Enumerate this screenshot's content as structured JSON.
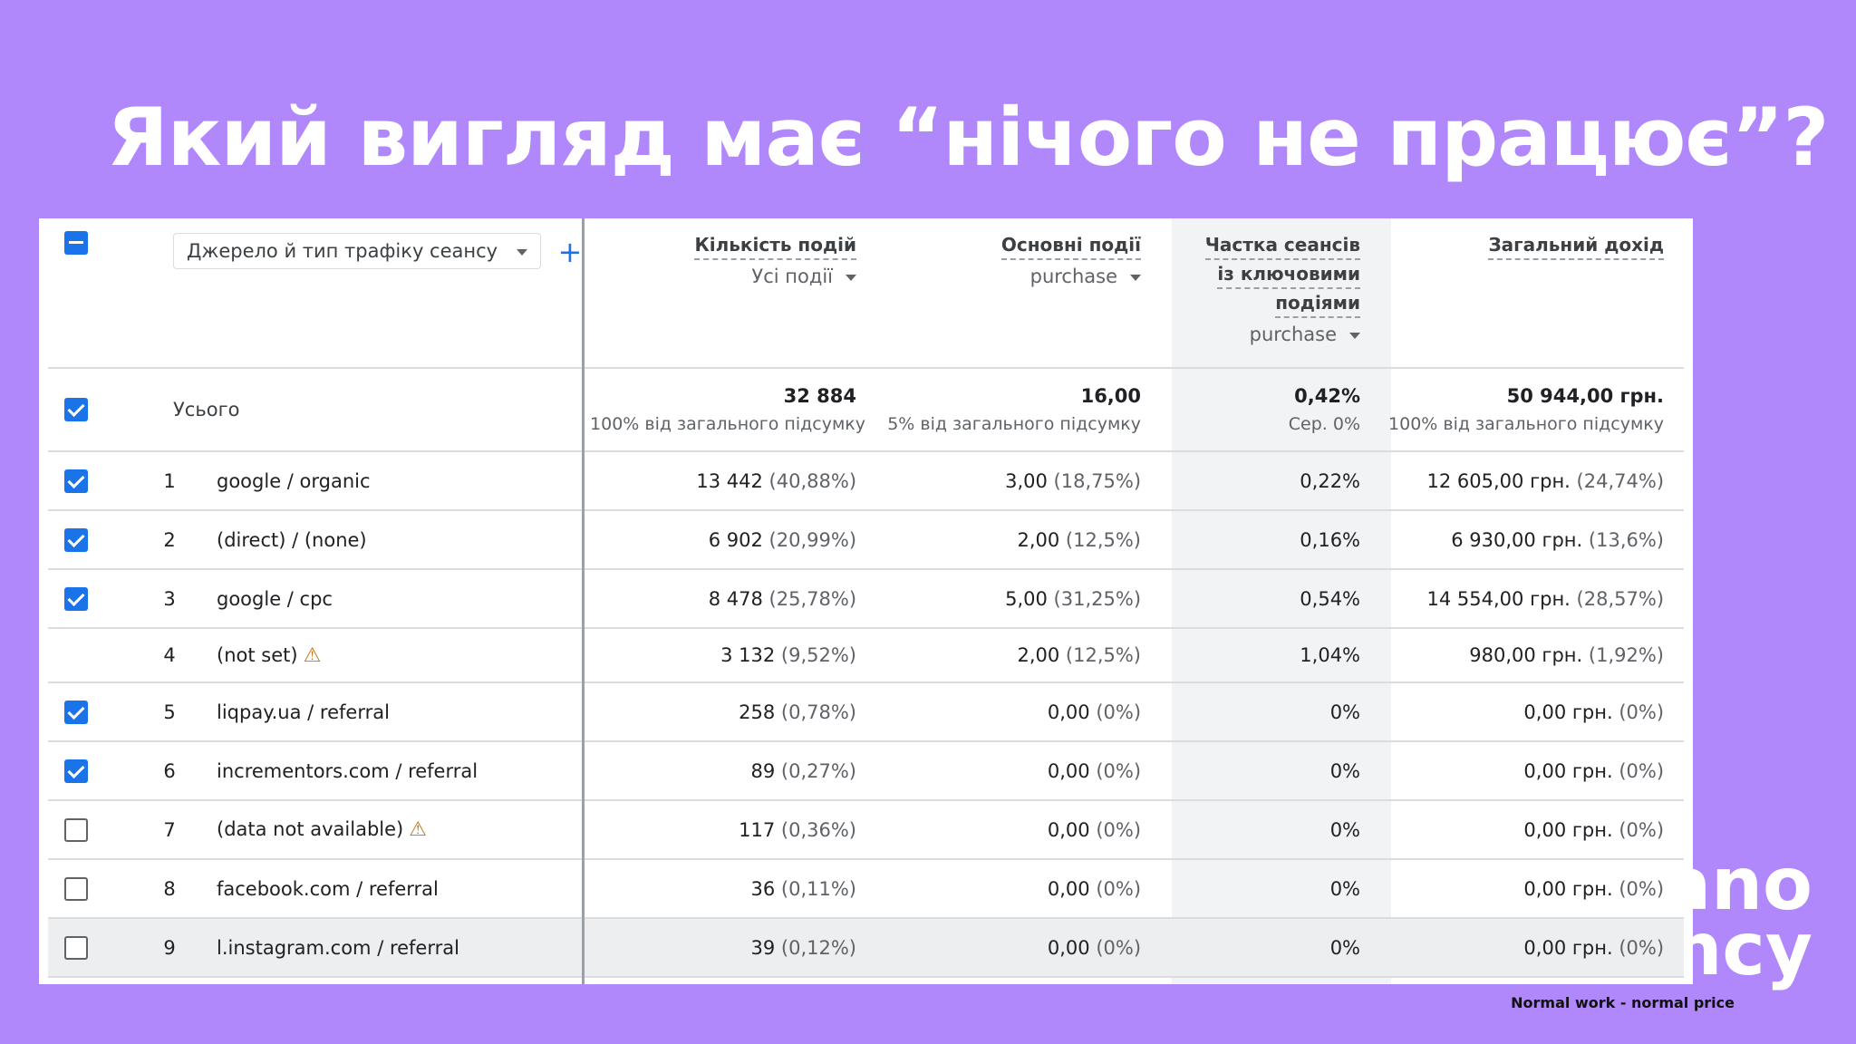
{
  "slide": {
    "title": "Який вигляд має “нічого не працює”?",
    "brand_line1": "аno",
    "brand_line2": "ency",
    "brand_tagline": "Normal work - normal price"
  },
  "report": {
    "dimension_selector": "Джерело й тип трафіку сеансу",
    "add_icon": "plus-icon",
    "columns": [
      {
        "title": "Кількість подій",
        "subtitle": "Усі події",
        "has_dropdown": true
      },
      {
        "title": "Основні події",
        "subtitle": "purchase",
        "has_dropdown": true
      },
      {
        "title_lines": [
          "Частка сеансів",
          "із ключовими",
          "подіями"
        ],
        "subtitle": "purchase",
        "has_dropdown": true
      },
      {
        "title": "Загальний дохід",
        "subtitle": "",
        "has_dropdown": false
      }
    ],
    "totals": {
      "label": "Усього",
      "checked": true,
      "values": [
        "32 884",
        "16,00",
        "0,42%",
        "50 944,00 грн."
      ],
      "subs": [
        "100% від загального підсумку",
        "5% від загального підсумку",
        "Сер. 0%",
        "100% від загального підсумку"
      ]
    },
    "rows": [
      {
        "n": "1",
        "name": "google / organic",
        "checked": true,
        "warn": false,
        "events": "13 442",
        "events_pct": "(40,88%)",
        "key": "3,00",
        "key_pct": "(18,75%)",
        "rate": "0,22%",
        "rev": "12 605,00 грн.",
        "rev_pct": "(24,74%)"
      },
      {
        "n": "2",
        "name": "(direct) / (none)",
        "checked": true,
        "warn": false,
        "events": "6 902",
        "events_pct": "(20,99%)",
        "key": "2,00",
        "key_pct": "(12,5%)",
        "rate": "0,16%",
        "rev": "6 930,00 грн.",
        "rev_pct": "(13,6%)"
      },
      {
        "n": "3",
        "name": "google / cpc",
        "checked": true,
        "warn": false,
        "events": "8 478",
        "events_pct": "(25,78%)",
        "key": "5,00",
        "key_pct": "(31,25%)",
        "rate": "0,54%",
        "rev": "14 554,00 грн.",
        "rev_pct": "(28,57%)"
      },
      {
        "n": "4",
        "name": "(not set)",
        "checked": null,
        "warn": true,
        "events": "3 132",
        "events_pct": "(9,52%)",
        "key": "2,00",
        "key_pct": "(12,5%)",
        "rate": "1,04%",
        "rev": "980,00 грн.",
        "rev_pct": "(1,92%)"
      },
      {
        "n": "5",
        "name": "liqpay.ua / referral",
        "checked": true,
        "warn": false,
        "events": "258",
        "events_pct": "(0,78%)",
        "key": "0,00",
        "key_pct": "(0%)",
        "rate": "0%",
        "rev": "0,00 грн.",
        "rev_pct": "(0%)"
      },
      {
        "n": "6",
        "name": "incrementors.com / referral",
        "checked": true,
        "warn": false,
        "events": "89",
        "events_pct": "(0,27%)",
        "key": "0,00",
        "key_pct": "(0%)",
        "rate": "0%",
        "rev": "0,00 грн.",
        "rev_pct": "(0%)"
      },
      {
        "n": "7",
        "name": "(data not available)",
        "checked": false,
        "warn": true,
        "events": "117",
        "events_pct": "(0,36%)",
        "key": "0,00",
        "key_pct": "(0%)",
        "rate": "0%",
        "rev": "0,00 грн.",
        "rev_pct": "(0%)"
      },
      {
        "n": "8",
        "name": "facebook.com / referral",
        "checked": false,
        "warn": false,
        "events": "36",
        "events_pct": "(0,11%)",
        "key": "0,00",
        "key_pct": "(0%)",
        "rate": "0%",
        "rev": "0,00 грн.",
        "rev_pct": "(0%)"
      },
      {
        "n": "9",
        "name": "l.instagram.com / referral",
        "checked": false,
        "warn": false,
        "events": "39",
        "events_pct": "(0,12%)",
        "key": "0,00",
        "key_pct": "(0%)",
        "rate": "0%",
        "rev": "0,00 грн.",
        "rev_pct": "(0%)"
      }
    ]
  }
}
